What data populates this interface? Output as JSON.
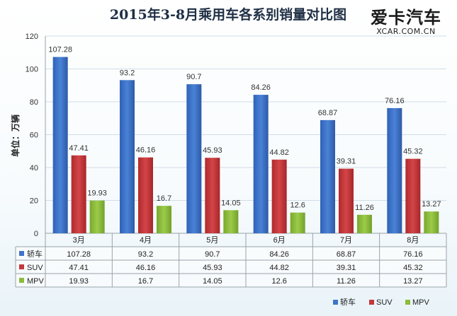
{
  "logo": {
    "text": "爱卡汽车",
    "subtext": "XCAR.COM.CN"
  },
  "chart_data": {
    "type": "bar",
    "title": "2015年3-8月乘用车各系别销量对比图",
    "ylabel": "单位：万辆",
    "ylim": [
      0,
      120
    ],
    "yticks": [
      0,
      20,
      40,
      60,
      80,
      100,
      120
    ],
    "grid": true,
    "legend": "bottom-right",
    "categories": [
      "3月",
      "4月",
      "5月",
      "6月",
      "7月",
      "8月"
    ],
    "series": [
      {
        "name": "轿车",
        "color": "#3f74c9",
        "values": [
          107.28,
          93.2,
          90.7,
          84.26,
          68.87,
          76.16
        ]
      },
      {
        "name": "SUV",
        "color": "#c3383a",
        "values": [
          47.41,
          46.16,
          45.93,
          44.82,
          39.31,
          45.32
        ]
      },
      {
        "name": "MPV",
        "color": "#8bbb3b",
        "values": [
          19.93,
          16.7,
          14.05,
          12.6,
          11.26,
          13.27
        ]
      }
    ],
    "table": true
  }
}
